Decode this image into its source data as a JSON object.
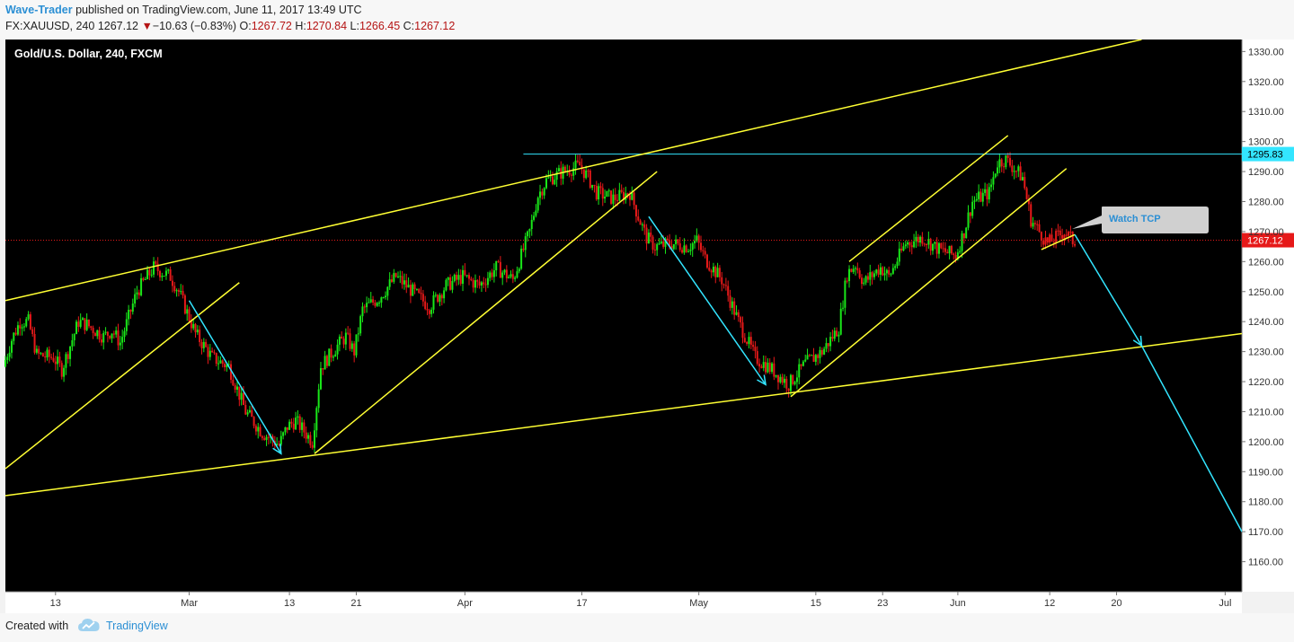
{
  "header": {
    "author": "Wave-Trader",
    "published_text": "published on TradingView.com, June 11, 2017 13:49 UTC",
    "symbol": "FX:XAUUSD, 240",
    "last": "1267.12",
    "change_arrow": "▼",
    "change": "−10.63 (−0.83%)",
    "o_label": "O:",
    "o_value": "1267.72",
    "h_label": "H:",
    "h_value": "1270.84",
    "l_label": "L:",
    "l_value": "1266.45",
    "c_label": "C:",
    "c_value": "1267.12"
  },
  "footer": {
    "created_with": "Created with",
    "brand": "TradingView",
    "logo_icon": "tradingview-cloud-icon"
  },
  "colors": {
    "background": "#000000",
    "up_candle": "#19e619",
    "down_candle": "#e61919",
    "trendline": "#ffff33",
    "arrow": "#33e5ff",
    "resistance_line": "#33e5ff",
    "current_price_line": "#e61919"
  },
  "chart_data": {
    "type": "candlestick",
    "title": "Gold/U.S. Dollar, 240, FXCM",
    "ylim": [
      1150,
      1334
    ],
    "y_ticks": [
      "1160.00",
      "1170.00",
      "1180.00",
      "1190.00",
      "1200.00",
      "1210.00",
      "1220.00",
      "1230.00",
      "1240.00",
      "1250.00",
      "1260.00",
      "1270.00",
      "1280.00",
      "1290.00",
      "1300.00",
      "1310.00",
      "1320.00",
      "1330.00"
    ],
    "x_range_days": [
      "2017-02-07",
      "2017-07-05"
    ],
    "x_ticks": [
      {
        "label": "13",
        "date": "2017-02-13"
      },
      {
        "label": "Mar",
        "date": "2017-03-01"
      },
      {
        "label": "13",
        "date": "2017-03-13"
      },
      {
        "label": "21",
        "date": "2017-03-21"
      },
      {
        "label": "Apr",
        "date": "2017-04-03"
      },
      {
        "label": "17",
        "date": "2017-04-17"
      },
      {
        "label": "May",
        "date": "2017-05-01"
      },
      {
        "label": "15",
        "date": "2017-05-15"
      },
      {
        "label": "23",
        "date": "2017-05-23"
      },
      {
        "label": "Jun",
        "date": "2017-06-01"
      },
      {
        "label": "12",
        "date": "2017-06-12"
      },
      {
        "label": "20",
        "date": "2017-06-20"
      },
      {
        "label": "Jul",
        "date": "2017-07-03"
      }
    ],
    "price_path": [
      [
        "2017-02-07",
        1225
      ],
      [
        "2017-02-08",
        1234
      ],
      [
        "2017-02-09",
        1240
      ],
      [
        "2017-02-10",
        1240
      ],
      [
        "2017-02-11",
        1229
      ],
      [
        "2017-02-13",
        1228
      ],
      [
        "2017-02-14",
        1224
      ],
      [
        "2017-02-15",
        1232
      ],
      [
        "2017-02-16",
        1240
      ],
      [
        "2017-02-17",
        1239
      ],
      [
        "2017-02-19",
        1235
      ],
      [
        "2017-02-20",
        1237
      ],
      [
        "2017-02-21",
        1233
      ],
      [
        "2017-02-23",
        1250
      ],
      [
        "2017-02-25",
        1258
      ],
      [
        "2017-02-27",
        1255
      ],
      [
        "2017-02-28",
        1250
      ],
      [
        "2017-03-02",
        1236
      ],
      [
        "2017-03-04",
        1228
      ],
      [
        "2017-03-06",
        1225
      ],
      [
        "2017-03-08",
        1210
      ],
      [
        "2017-03-10",
        1203
      ],
      [
        "2017-03-12",
        1199
      ],
      [
        "2017-03-13",
        1205
      ],
      [
        "2017-03-14",
        1207
      ],
      [
        "2017-03-16",
        1200
      ],
      [
        "2017-03-17",
        1225
      ],
      [
        "2017-03-19",
        1232
      ],
      [
        "2017-03-20",
        1235
      ],
      [
        "2017-03-21",
        1230
      ],
      [
        "2017-03-22",
        1244
      ],
      [
        "2017-03-24",
        1248
      ],
      [
        "2017-03-26",
        1255
      ],
      [
        "2017-03-28",
        1250
      ],
      [
        "2017-03-30",
        1245
      ],
      [
        "2017-04-01",
        1252
      ],
      [
        "2017-04-03",
        1255
      ],
      [
        "2017-04-05",
        1252
      ],
      [
        "2017-04-07",
        1258
      ],
      [
        "2017-04-09",
        1254
      ],
      [
        "2017-04-11",
        1270
      ],
      [
        "2017-04-12",
        1282
      ],
      [
        "2017-04-13",
        1287
      ],
      [
        "2017-04-15",
        1290
      ],
      [
        "2017-04-17",
        1292
      ],
      [
        "2017-04-18",
        1288
      ],
      [
        "2017-04-19",
        1283
      ],
      [
        "2017-04-21",
        1281
      ],
      [
        "2017-04-23",
        1283
      ],
      [
        "2017-04-24",
        1275
      ],
      [
        "2017-04-25",
        1268
      ],
      [
        "2017-04-26",
        1265
      ],
      [
        "2017-04-28",
        1266
      ],
      [
        "2017-04-30",
        1265
      ],
      [
        "2017-05-01",
        1267
      ],
      [
        "2017-05-02",
        1261
      ],
      [
        "2017-05-04",
        1254
      ],
      [
        "2017-05-06",
        1240
      ],
      [
        "2017-05-08",
        1228
      ],
      [
        "2017-05-09",
        1226
      ],
      [
        "2017-05-10",
        1224
      ],
      [
        "2017-05-12",
        1219
      ],
      [
        "2017-05-14",
        1226
      ],
      [
        "2017-05-16",
        1230
      ],
      [
        "2017-05-18",
        1238
      ],
      [
        "2017-05-19",
        1256
      ],
      [
        "2017-05-20",
        1259
      ],
      [
        "2017-05-21",
        1253
      ],
      [
        "2017-05-23",
        1258
      ],
      [
        "2017-05-24",
        1255
      ],
      [
        "2017-05-26",
        1266
      ],
      [
        "2017-05-28",
        1268
      ],
      [
        "2017-05-30",
        1264
      ],
      [
        "2017-06-01",
        1262
      ],
      [
        "2017-06-02",
        1270
      ],
      [
        "2017-06-03",
        1280
      ],
      [
        "2017-06-05",
        1283
      ],
      [
        "2017-06-06",
        1293
      ],
      [
        "2017-06-07",
        1294
      ],
      [
        "2017-06-09",
        1288
      ],
      [
        "2017-06-10",
        1274
      ],
      [
        "2017-06-12",
        1266
      ],
      [
        "2017-06-14",
        1270
      ],
      [
        "2017-06-15",
        1267
      ]
    ],
    "current_price": 1267.12,
    "current_price_label": "1267.12",
    "resistance_price": 1295.83,
    "resistance_label": "1295.83",
    "annotation": "Watch TCP",
    "trend_lines": [
      {
        "from": [
          "2017-02-07",
          1247
        ],
        "to": [
          "2017-06-23",
          1334
        ]
      },
      {
        "from": [
          "2017-02-07",
          1182
        ],
        "to": [
          "2017-07-05",
          1236
        ]
      },
      {
        "from": [
          "2017-02-07",
          1191
        ],
        "to": [
          "2017-03-07",
          1253
        ]
      },
      {
        "from": [
          "2017-03-16",
          1196
        ],
        "to": [
          "2017-04-26",
          1290
        ]
      },
      {
        "from": [
          "2017-05-19",
          1260
        ],
        "to": [
          "2017-06-07",
          1302
        ]
      },
      {
        "from": [
          "2017-05-12",
          1215
        ],
        "to": [
          "2017-06-14",
          1291
        ]
      },
      {
        "from": [
          "2017-06-11",
          1264
        ],
        "to": [
          "2017-06-15",
          1269
        ]
      }
    ],
    "arrows": [
      {
        "from": [
          "2017-03-01",
          1247
        ],
        "to": [
          "2017-03-12",
          1196
        ]
      },
      {
        "from": [
          "2017-04-25",
          1275
        ],
        "to": [
          "2017-05-09",
          1219
        ]
      },
      {
        "from": [
          "2017-06-15",
          1269
        ],
        "to": [
          "2017-06-23",
          1232
        ]
      }
    ],
    "projection_line": {
      "from": [
        "2017-06-23",
        1232
      ],
      "to": [
        "2017-07-05",
        1170
      ]
    }
  }
}
